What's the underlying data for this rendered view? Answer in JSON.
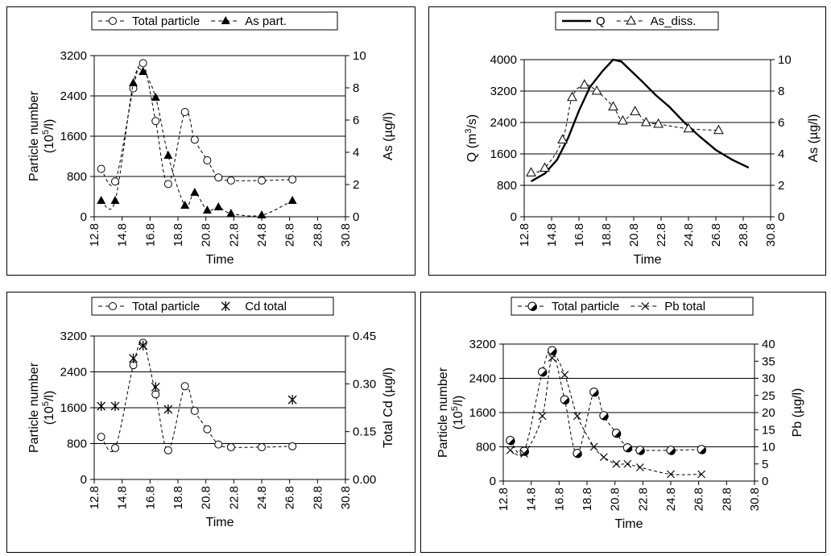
{
  "chart_data": [
    {
      "type": "line",
      "xlabel": "Time",
      "x_ticks": [
        "12.8",
        "14.8",
        "16.8",
        "18.8",
        "20.8",
        "22.8",
        "24.8",
        "26.8",
        "28.8",
        "30.8"
      ],
      "xlim": [
        12.8,
        30.8
      ],
      "ylabel_left": "Particle number",
      "ylabel_left_unit_base": "(10",
      "ylabel_left_unit_sup": "5",
      "ylabel_left_unit_tail": "/l)",
      "ylim_left": [
        0,
        3200
      ],
      "y_ticks_left": [
        "0",
        "800",
        "1600",
        "2400",
        "3200"
      ],
      "ylabel_right": "As (µg/l)",
      "ylim_right": [
        0,
        10
      ],
      "y_ticks_right": [
        "0",
        "2",
        "4",
        "6",
        "8",
        "10"
      ],
      "grid": "horizontal",
      "legend_position": "top-center",
      "legend": [
        "Total particle",
        "As part."
      ],
      "series": [
        {
          "name": "Total particle",
          "axis": "left",
          "marker": "open-circle",
          "line": "dashed",
          "x": [
            13.3,
            14.3,
            15.6,
            16.3,
            17.2,
            18.1,
            19.3,
            20.0,
            20.9,
            21.7,
            22.6,
            24.8,
            27.0
          ],
          "y": [
            950,
            700,
            2550,
            3050,
            1900,
            650,
            2080,
            1530,
            1120,
            780,
            720,
            720,
            740
          ]
        },
        {
          "name": "As part.",
          "axis": "right",
          "marker": "filled-triangle",
          "line": "dashed",
          "x": [
            13.3,
            14.3,
            15.6,
            16.3,
            17.2,
            18.1,
            19.3,
            20.0,
            20.9,
            21.7,
            22.6,
            24.8,
            27.0
          ],
          "y": [
            1.0,
            1.0,
            8.3,
            9.0,
            7.4,
            3.8,
            0.7,
            1.5,
            0.4,
            0.6,
            0.2,
            0.1,
            1.0
          ]
        }
      ]
    },
    {
      "type": "line",
      "xlabel": "Time",
      "x_ticks": [
        "12.8",
        "14.8",
        "16.8",
        "18.8",
        "20.8",
        "22.8",
        "24.8",
        "26.8",
        "28.8",
        "30.8"
      ],
      "xlim": [
        12.8,
        30.8
      ],
      "ylabel_left": "Q (m",
      "ylabel_left_sup": "3",
      "ylabel_left_tail": "/s)",
      "ylim_left": [
        0,
        4000
      ],
      "y_ticks_left": [
        "0",
        "800",
        "1600",
        "2400",
        "3200",
        "4000"
      ],
      "ylabel_right": "As (µg/l)",
      "ylim_right": [
        0,
        10
      ],
      "y_ticks_right": [
        "0",
        "2",
        "4",
        "6",
        "8",
        "10"
      ],
      "grid": "horizontal",
      "legend_position": "top-center",
      "legend": [
        "Q",
        "As_diss."
      ],
      "series": [
        {
          "name": "Q",
          "axis": "left",
          "marker": "none",
          "line": "solid-thick",
          "x": [
            13.3,
            14.3,
            15.2,
            16.0,
            16.8,
            17.6,
            18.5,
            19.3,
            19.9,
            20.5,
            21.4,
            22.4,
            23.4,
            24.5,
            25.6,
            26.8,
            28.0,
            29.2
          ],
          "y": [
            900,
            1100,
            1450,
            2000,
            2700,
            3300,
            3700,
            4000,
            3950,
            3750,
            3450,
            3100,
            2800,
            2400,
            2050,
            1700,
            1450,
            1250
          ]
        },
        {
          "name": "As_diss.",
          "axis": "right",
          "marker": "open-triangle",
          "line": "dashed",
          "x": [
            13.3,
            14.3,
            15.6,
            16.3,
            17.2,
            18.1,
            19.3,
            20.0,
            20.9,
            21.7,
            22.6,
            24.8,
            27.0
          ],
          "y": [
            2.8,
            3.1,
            4.9,
            7.6,
            8.4,
            8.0,
            7.0,
            6.1,
            6.7,
            6.0,
            5.9,
            5.6,
            5.5
          ]
        }
      ]
    },
    {
      "type": "line",
      "xlabel": "Time",
      "x_ticks": [
        "12.8",
        "14.8",
        "16.8",
        "18.8",
        "20.8",
        "22.8",
        "24.8",
        "26.8",
        "28.8",
        "30.8"
      ],
      "xlim": [
        12.8,
        30.8
      ],
      "ylabel_left": "Particle number",
      "ylabel_left_unit_base": "(10",
      "ylabel_left_unit_sup": "5",
      "ylabel_left_unit_tail": "/l)",
      "ylim_left": [
        0,
        3200
      ],
      "y_ticks_left": [
        "0",
        "800",
        "1600",
        "2400",
        "3200"
      ],
      "ylabel_right": "Total Cd (µg/l)",
      "ylim_right": [
        0,
        0.45
      ],
      "y_ticks_right": [
        "0.00",
        "0.15",
        "0.30",
        "0.45"
      ],
      "grid": "horizontal",
      "legend_position": "top-center",
      "legend": [
        "Total particle",
        "Cd total"
      ],
      "series": [
        {
          "name": "Total particle",
          "axis": "left",
          "marker": "open-circle",
          "line": "dashed",
          "x": [
            13.3,
            14.3,
            15.6,
            16.3,
            17.2,
            18.1,
            19.3,
            20.0,
            20.9,
            21.7,
            22.6,
            24.8,
            27.0
          ],
          "y": [
            950,
            700,
            2550,
            3050,
            1900,
            650,
            2080,
            1530,
            1120,
            780,
            720,
            720,
            740
          ]
        },
        {
          "name": "Cd total",
          "axis": "right",
          "marker": "asterisk",
          "line": "none",
          "x": [
            13.3,
            14.3,
            15.6,
            16.3,
            17.2,
            18.1,
            27.0
          ],
          "y": [
            0.23,
            0.23,
            0.38,
            0.42,
            0.29,
            0.22,
            0.25
          ]
        }
      ]
    },
    {
      "type": "line",
      "xlabel": "Time",
      "x_ticks": [
        "12.8",
        "14.8",
        "16.8",
        "18.8",
        "20.8",
        "22.8",
        "24.8",
        "26.8",
        "28.8",
        "30.8"
      ],
      "xlim": [
        12.8,
        30.8
      ],
      "ylabel_left": "Particle number",
      "ylabel_left_unit_base": "(10",
      "ylabel_left_unit_sup": "5",
      "ylabel_left_unit_tail": "/l)",
      "ylim_left": [
        0,
        3200
      ],
      "y_ticks_left": [
        "0",
        "800",
        "1600",
        "2400",
        "3200"
      ],
      "ylabel_right": "Pb (µg/l)",
      "ylim_right": [
        0,
        40
      ],
      "y_ticks_right": [
        "0",
        "5",
        "10",
        "15",
        "20",
        "25",
        "30",
        "35",
        "40"
      ],
      "grid": "horizontal",
      "legend_position": "top-center",
      "legend": [
        "Total particle",
        "Pb total"
      ],
      "series": [
        {
          "name": "Total particle",
          "axis": "left",
          "marker": "half-filled-circle",
          "line": "dashed",
          "x": [
            13.3,
            14.3,
            15.6,
            16.3,
            17.2,
            18.1,
            19.3,
            20.0,
            20.9,
            21.7,
            22.6,
            24.8,
            27.0
          ],
          "y": [
            950,
            700,
            2550,
            3050,
            1900,
            650,
            2080,
            1530,
            1120,
            780,
            720,
            720,
            740
          ]
        },
        {
          "name": "Pb total",
          "axis": "right",
          "marker": "x-cross",
          "line": "dashed",
          "x": [
            13.3,
            14.3,
            15.6,
            16.3,
            17.2,
            18.1,
            19.3,
            20.0,
            20.9,
            21.7,
            22.6,
            24.8,
            27.0
          ],
          "y": [
            9,
            8,
            19,
            36,
            31,
            19,
            10,
            7,
            5,
            5,
            4,
            2,
            2
          ]
        }
      ]
    }
  ]
}
